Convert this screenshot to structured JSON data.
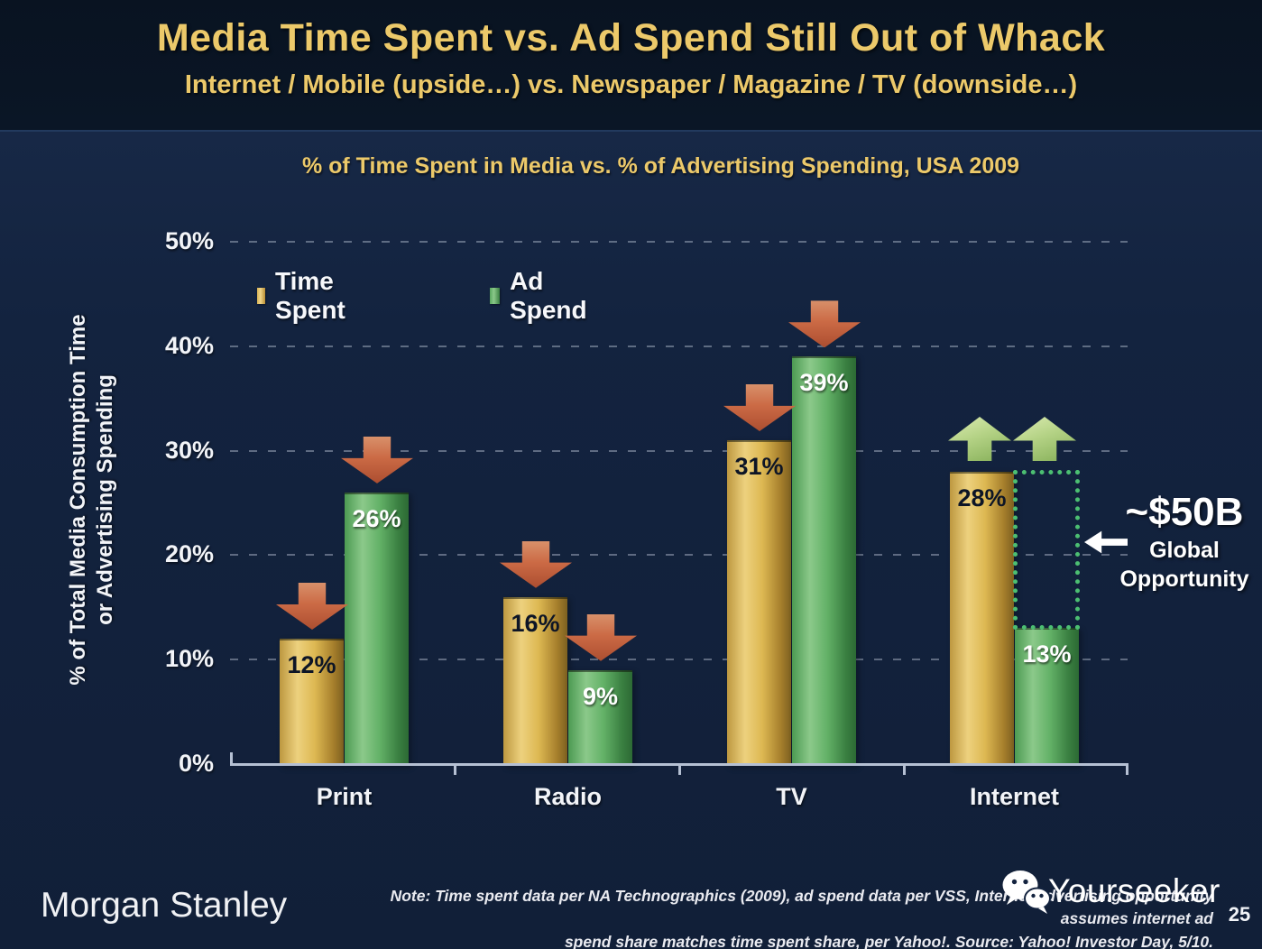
{
  "header": {
    "title": "Media Time Spent vs. Ad Spend Still Out of Whack",
    "subtitle": "Internet / Mobile (upside…) vs. Newspaper / Magazine / TV (downside…)"
  },
  "chart_data": {
    "type": "bar",
    "title": "% of Time Spent in Media vs. % of Advertising Spending, USA 2009",
    "categories": [
      "Print",
      "Radio",
      "TV",
      "Internet"
    ],
    "series": [
      {
        "name": "Time Spent",
        "values": [
          12,
          16,
          31,
          28
        ],
        "labels": [
          "12%",
          "16%",
          "31%",
          "28%"
        ]
      },
      {
        "name": "Ad Spend",
        "values": [
          26,
          9,
          39,
          13
        ],
        "labels": [
          "26%",
          "9%",
          "39%",
          "13%"
        ]
      }
    ],
    "ylabel_line1": "% of Total Media Consumption Time",
    "ylabel_line2": "or Advertising Spending",
    "y_ticks": [
      "0%",
      "10%",
      "20%",
      "30%",
      "40%",
      "50%"
    ],
    "y_tick_values": [
      0,
      10,
      20,
      30,
      40,
      50
    ],
    "ylim": [
      0,
      50
    ],
    "grid": "dashed-horizontal",
    "legend_position": "top-left-inside",
    "arrows": [
      [
        "down",
        "down"
      ],
      [
        "down",
        "down"
      ],
      [
        "down",
        "down"
      ],
      [
        "up",
        "up"
      ]
    ]
  },
  "annotation": {
    "amount": "~$50B",
    "label_line1": "Global",
    "label_line2": "Opportunity"
  },
  "footer": {
    "brand": "Morgan Stanley",
    "note_line1": "Note: Time spent data per NA Technographics (2009), ad spend data per VSS, Internet advertising opportunity assumes internet ad",
    "note_line2": "spend share matches time spent share, per Yahoo!. Source: Yahoo! Investor Day, 5/10.",
    "watermark": "Yourseeker",
    "page_number": "25"
  },
  "colors": {
    "background": "#13233f",
    "header_background": "#0a1626",
    "title_gold": "#ecc96a",
    "bar_gold": "#e2bd58",
    "bar_green": "#5fae62",
    "arrow_down_red": "#c4603c",
    "arrow_up_green": "#b5d488",
    "opportunity_box_green": "#4cbf72",
    "axis_line": "#b5c0d3"
  }
}
